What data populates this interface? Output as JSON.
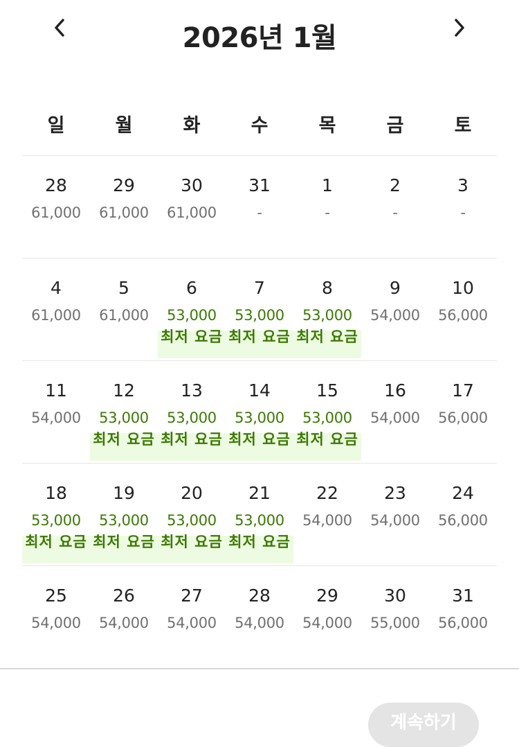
{
  "header": {
    "title": "2026년 1월",
    "prev_icon": "chevron-left-icon",
    "next_icon": "chevron-right-icon"
  },
  "weekdays": [
    "일",
    "월",
    "화",
    "수",
    "목",
    "금",
    "토"
  ],
  "lowest_label": "최저 요금",
  "colors": {
    "lowest_text": "#3a7a00",
    "lowest_bg": "#eefbe3",
    "normal_price": "#707070"
  },
  "weeks": [
    [
      {
        "day": "28",
        "price": "61,000",
        "lowest": false
      },
      {
        "day": "29",
        "price": "61,000",
        "lowest": false
      },
      {
        "day": "30",
        "price": "61,000",
        "lowest": false
      },
      {
        "day": "31",
        "price": "-",
        "lowest": false
      },
      {
        "day": "1",
        "price": "-",
        "lowest": false
      },
      {
        "day": "2",
        "price": "-",
        "lowest": false
      },
      {
        "day": "3",
        "price": "-",
        "lowest": false
      }
    ],
    [
      {
        "day": "4",
        "price": "61,000",
        "lowest": false
      },
      {
        "day": "5",
        "price": "61,000",
        "lowest": false
      },
      {
        "day": "6",
        "price": "53,000",
        "lowest": true
      },
      {
        "day": "7",
        "price": "53,000",
        "lowest": true
      },
      {
        "day": "8",
        "price": "53,000",
        "lowest": true
      },
      {
        "day": "9",
        "price": "54,000",
        "lowest": false
      },
      {
        "day": "10",
        "price": "56,000",
        "lowest": false
      }
    ],
    [
      {
        "day": "11",
        "price": "54,000",
        "lowest": false
      },
      {
        "day": "12",
        "price": "53,000",
        "lowest": true
      },
      {
        "day": "13",
        "price": "53,000",
        "lowest": true
      },
      {
        "day": "14",
        "price": "53,000",
        "lowest": true
      },
      {
        "day": "15",
        "price": "53,000",
        "lowest": true
      },
      {
        "day": "16",
        "price": "54,000",
        "lowest": false
      },
      {
        "day": "17",
        "price": "56,000",
        "lowest": false
      }
    ],
    [
      {
        "day": "18",
        "price": "53,000",
        "lowest": true
      },
      {
        "day": "19",
        "price": "53,000",
        "lowest": true
      },
      {
        "day": "20",
        "price": "53,000",
        "lowest": true
      },
      {
        "day": "21",
        "price": "53,000",
        "lowest": true
      },
      {
        "day": "22",
        "price": "54,000",
        "lowest": false
      },
      {
        "day": "23",
        "price": "54,000",
        "lowest": false
      },
      {
        "day": "24",
        "price": "56,000",
        "lowest": false
      }
    ],
    [
      {
        "day": "25",
        "price": "54,000",
        "lowest": false
      },
      {
        "day": "26",
        "price": "54,000",
        "lowest": false
      },
      {
        "day": "27",
        "price": "54,000",
        "lowest": false
      },
      {
        "day": "28",
        "price": "54,000",
        "lowest": false
      },
      {
        "day": "29",
        "price": "54,000",
        "lowest": false
      },
      {
        "day": "30",
        "price": "55,000",
        "lowest": false
      },
      {
        "day": "31",
        "price": "56,000",
        "lowest": false
      }
    ]
  ],
  "footer": {
    "continue_label": "계속하기"
  }
}
